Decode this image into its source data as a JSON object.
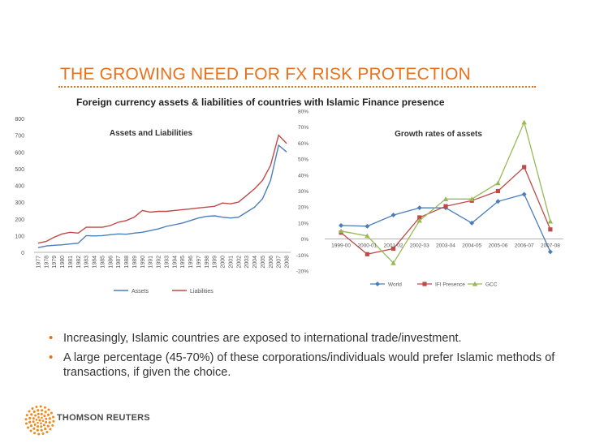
{
  "slide": {
    "title": "THE GROWING NEED FOR FX RISK PROTECTION",
    "subtitle": "Foreign currency assets & liabilities of countries with Islamic Finance presence"
  },
  "bullets": [
    "Increasingly, Islamic countries are exposed to international trade/investment.",
    "A large percentage (45-70%) of these corporations/individuals would prefer Islamic methods of transactions, if given the choice."
  ],
  "logo": {
    "text": "THOMSON REUTERS"
  },
  "colors": {
    "accent": "#e8711c",
    "assets": "#4a7ebb",
    "liabilities": "#be4b48",
    "world": "#4a7ebb",
    "ifi": "#be4b48",
    "gcc": "#98b954"
  },
  "chart_data": [
    {
      "type": "line",
      "title": "Assets and Liabilities",
      "categories": [
        "1977",
        "1978",
        "1979",
        "1980",
        "1981",
        "1982",
        "1983",
        "1984",
        "1985",
        "1986",
        "1987",
        "1988",
        "1989",
        "1990",
        "1991",
        "1992",
        "1993",
        "1994",
        "1995",
        "1996",
        "1997",
        "1998",
        "1999",
        "2000",
        "2001",
        "2002",
        "2003",
        "2004",
        "2005",
        "2006",
        "2007",
        "2008"
      ],
      "yticks": [
        "0",
        "100",
        "200",
        "300",
        "400",
        "500",
        "600",
        "700",
        "800"
      ],
      "ylim": [
        0,
        800
      ],
      "series": [
        {
          "name": "Assets",
          "values": [
            28,
            38,
            42,
            45,
            50,
            55,
            100,
            98,
            100,
            105,
            110,
            108,
            115,
            120,
            130,
            140,
            155,
            165,
            175,
            190,
            205,
            215,
            218,
            210,
            205,
            210,
            240,
            270,
            320,
            430,
            640,
            600
          ]
        },
        {
          "name": "Liabilities",
          "values": [
            55,
            65,
            90,
            110,
            120,
            115,
            150,
            150,
            150,
            160,
            180,
            190,
            210,
            250,
            240,
            245,
            245,
            250,
            255,
            260,
            265,
            270,
            275,
            295,
            290,
            300,
            340,
            380,
            430,
            520,
            700,
            650
          ]
        }
      ],
      "legend": [
        "Assets",
        "Liabilities"
      ]
    },
    {
      "type": "line",
      "title": "Growth rates of assets",
      "categories": [
        "1999-00",
        "2000-01",
        "2001-02",
        "2002-03",
        "2003-04",
        "2004-05",
        "2005-06",
        "2006-07",
        "2007-08"
      ],
      "yticks": [
        "-20%",
        "-10%",
        "0%",
        "10%",
        "20%",
        "30%",
        "40%",
        "50%",
        "60%",
        "70%",
        "80%"
      ],
      "ylim": [
        -20,
        80
      ],
      "series": [
        {
          "name": "World",
          "values": [
            8.5,
            8,
            15,
            19.5,
            19.5,
            10,
            23.5,
            28,
            -8
          ]
        },
        {
          "name": "IFI Presence",
          "values": [
            4,
            -9.5,
            -6,
            13.5,
            20.5,
            24,
            30,
            45,
            6
          ]
        },
        {
          "name": "GCC",
          "values": [
            5,
            2,
            -15,
            11.5,
            25,
            25,
            35,
            73,
            11
          ]
        }
      ],
      "legend": [
        "World",
        "IFI Presence",
        "GCC"
      ]
    }
  ]
}
